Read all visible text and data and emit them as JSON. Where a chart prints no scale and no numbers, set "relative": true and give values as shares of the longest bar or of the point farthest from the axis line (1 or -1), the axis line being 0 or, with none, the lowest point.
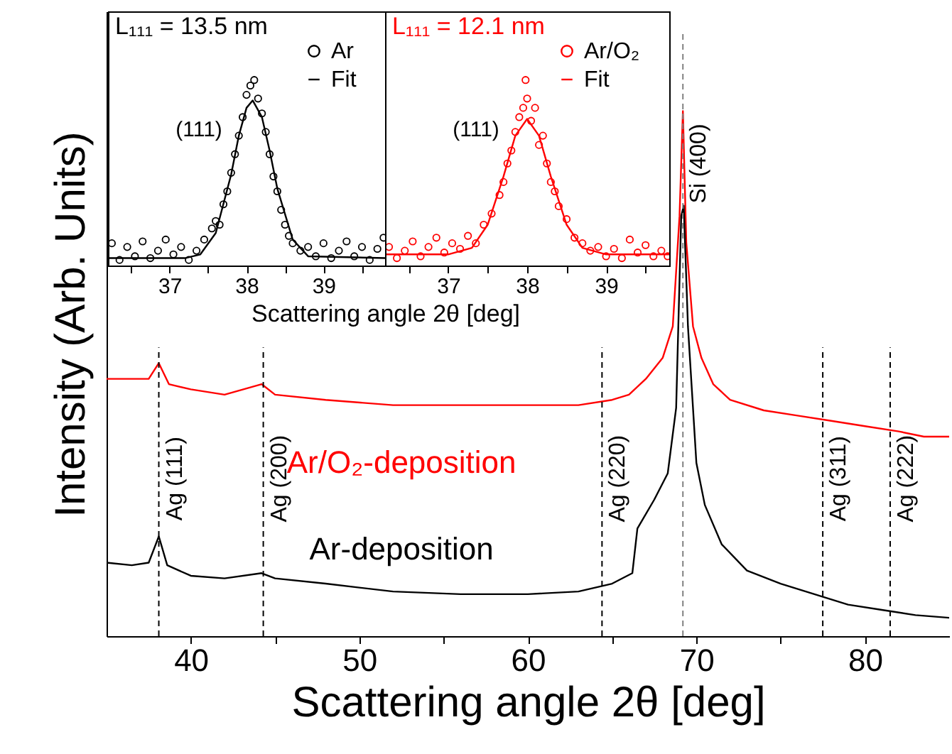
{
  "chart_data": [
    {
      "type": "line",
      "relative": true,
      "xlabel": "Scattering angle 2θ [deg]",
      "ylabel": "Intensity (Arb. Units)",
      "xlim": [
        35,
        85
      ],
      "xticks": [
        40,
        {
          "value": 45,
          "label": null
        },
        50,
        {
          "value": 55,
          "label": null
        },
        60,
        {
          "value": 65,
          "label": null
        },
        70,
        {
          "value": 75,
          "label": null
        },
        80
      ],
      "series": [
        {
          "name": "Ar/O₂-deposition",
          "color": "#ff0000",
          "x": [
            35,
            36.5,
            37.5,
            38.1,
            38.7,
            40,
            42,
            44.2,
            45,
            48,
            52,
            56,
            60,
            63,
            65,
            66,
            67,
            68,
            68.6,
            69,
            69.2,
            69.4,
            69.8,
            70.3,
            71,
            72,
            74,
            76,
            78,
            80,
            82,
            83.5,
            85
          ],
          "values": [
            0.49,
            0.49,
            0.49,
            0.52,
            0.48,
            0.47,
            0.46,
            0.48,
            0.46,
            0.45,
            0.44,
            0.44,
            0.44,
            0.44,
            0.45,
            0.46,
            0.49,
            0.53,
            0.59,
            0.8,
            1.0,
            0.75,
            0.59,
            0.53,
            0.48,
            0.45,
            0.43,
            0.42,
            0.41,
            0.4,
            0.39,
            0.38,
            0.38
          ]
        },
        {
          "name": "Ar-deposition",
          "color": "#000000",
          "x": [
            35,
            36.5,
            37.5,
            38.1,
            38.6,
            40,
            42,
            44.2,
            45,
            48,
            52,
            56,
            60,
            63,
            65,
            66.2,
            66.5,
            67.5,
            68.3,
            68.8,
            69.1,
            69.25,
            69.5,
            70,
            70.5,
            71.5,
            73,
            75,
            77,
            79,
            81,
            83,
            85
          ],
          "values": [
            0.14,
            0.135,
            0.14,
            0.19,
            0.135,
            0.115,
            0.11,
            0.12,
            0.11,
            0.1,
            0.085,
            0.08,
            0.08,
            0.085,
            0.1,
            0.12,
            0.205,
            0.26,
            0.31,
            0.435,
            0.8,
            0.82,
            0.59,
            0.33,
            0.25,
            0.175,
            0.125,
            0.1,
            0.08,
            0.06,
            0.05,
            0.04,
            0.035
          ]
        }
      ],
      "ref_lines": [
        {
          "axis": "x",
          "value": 38.1,
          "label": "Ag (111)",
          "line_style": "dashed",
          "color": "#000000"
        },
        {
          "axis": "x",
          "value": 44.3,
          "label": "Ag (200)",
          "line_style": "dashed",
          "color": "#000000"
        },
        {
          "axis": "x",
          "value": 64.4,
          "label": "Ag (220)",
          "line_style": "dashed",
          "color": "#000000"
        },
        {
          "axis": "x",
          "value": 69.2,
          "label": "Si (400)",
          "line_style": "dashed",
          "color": "#808080"
        },
        {
          "axis": "x",
          "value": 77.5,
          "label": "Ag (311)",
          "line_style": "dashed",
          "color": "#000000"
        },
        {
          "axis": "x",
          "value": 81.5,
          "label": "Ag (222)",
          "line_style": "dashed",
          "color": "#000000"
        }
      ]
    },
    {
      "type": "scatter",
      "relative": true,
      "xlabel": "Scattering angle 2θ [deg]",
      "xlim": [
        36.2,
        39.8
      ],
      "xticks": [
        {
          "value": 36.5,
          "label": null
        },
        37,
        {
          "value": 37.5,
          "label": null
        },
        38,
        {
          "value": 38.5,
          "label": null
        },
        39,
        {
          "value": 39.5,
          "label": null
        }
      ],
      "legend": "top right",
      "annotations": [
        "L₁₁₁ = 13.5 nm",
        "(111)"
      ],
      "series": [
        {
          "name": "Ar",
          "color": "#000000",
          "marker": "circle",
          "x": [
            36.25,
            36.35,
            36.45,
            36.55,
            36.65,
            36.75,
            36.85,
            36.95,
            37.05,
            37.15,
            37.25,
            37.35,
            37.45,
            37.55,
            37.6,
            37.65,
            37.7,
            37.75,
            37.8,
            37.85,
            37.9,
            37.95,
            38.0,
            38.05,
            38.1,
            38.15,
            38.2,
            38.25,
            38.3,
            38.35,
            38.4,
            38.45,
            38.5,
            38.55,
            38.6,
            38.7,
            38.8,
            38.9,
            39.0,
            39.1,
            39.2,
            39.3,
            39.4,
            39.5,
            39.6,
            39.7,
            39.78
          ],
          "values": [
            0.12,
            0.03,
            0.1,
            0.05,
            0.13,
            0.04,
            0.08,
            0.14,
            0.06,
            0.1,
            0.03,
            0.08,
            0.14,
            0.2,
            0.24,
            0.22,
            0.33,
            0.4,
            0.5,
            0.6,
            0.7,
            0.8,
            0.92,
            0.97,
            1.0,
            0.9,
            0.82,
            0.72,
            0.6,
            0.48,
            0.4,
            0.3,
            0.22,
            0.16,
            0.12,
            0.08,
            0.1,
            0.05,
            0.12,
            0.04,
            0.08,
            0.13,
            0.05,
            0.1,
            0.03,
            0.09,
            0.15
          ]
        },
        {
          "name": "Fit",
          "type": "line",
          "color": "#000000",
          "x": [
            36.2,
            37.2,
            37.4,
            37.6,
            37.8,
            37.9,
            38.0,
            38.08,
            38.2,
            38.3,
            38.4,
            38.6,
            38.8,
            39.8
          ],
          "values": [
            0.04,
            0.04,
            0.06,
            0.175,
            0.49,
            0.7,
            0.85,
            0.89,
            0.8,
            0.62,
            0.415,
            0.14,
            0.05,
            0.04
          ]
        }
      ]
    },
    {
      "type": "scatter",
      "relative": true,
      "xlim": [
        36.2,
        39.8
      ],
      "xticks": [
        {
          "value": 36.5,
          "label": null
        },
        37,
        {
          "value": 37.5,
          "label": null
        },
        38,
        {
          "value": 38.5,
          "label": null
        },
        39,
        {
          "value": 39.5,
          "label": null
        }
      ],
      "legend": "top right",
      "annotations": [
        "L₁₁₁ = 12.1 nm",
        "(111)"
      ],
      "series": [
        {
          "name": "Ar/O₂",
          "color": "#ff0000",
          "marker": "circle",
          "x": [
            36.25,
            36.35,
            36.45,
            36.55,
            36.65,
            36.75,
            36.85,
            36.95,
            37.05,
            37.15,
            37.25,
            37.35,
            37.45,
            37.55,
            37.65,
            37.7,
            37.75,
            37.8,
            37.85,
            37.9,
            37.95,
            37.98,
            38.0,
            38.05,
            38.1,
            38.15,
            38.2,
            38.25,
            38.3,
            38.35,
            38.4,
            38.5,
            38.6,
            38.7,
            38.8,
            38.9,
            39.0,
            39.1,
            39.2,
            39.3,
            39.4,
            39.5,
            39.6,
            39.7,
            39.78
          ],
          "values": [
            0.1,
            0.04,
            0.08,
            0.13,
            0.05,
            0.1,
            0.15,
            0.07,
            0.12,
            0.09,
            0.16,
            0.12,
            0.22,
            0.28,
            0.38,
            0.45,
            0.55,
            0.62,
            0.72,
            0.8,
            0.85,
            1.0,
            0.9,
            0.78,
            0.85,
            0.65,
            0.7,
            0.55,
            0.45,
            0.4,
            0.32,
            0.25,
            0.15,
            0.12,
            0.08,
            0.1,
            0.05,
            0.09,
            0.04,
            0.14,
            0.07,
            0.11,
            0.05,
            0.08,
            0.05
          ]
        },
        {
          "name": "Fit",
          "type": "line",
          "color": "#ff0000",
          "x": [
            36.2,
            37.0,
            37.3,
            37.5,
            37.7,
            37.85,
            38.0,
            38.15,
            38.3,
            38.5,
            38.7,
            39.0,
            39.8
          ],
          "values": [
            0.06,
            0.06,
            0.095,
            0.22,
            0.48,
            0.7,
            0.79,
            0.7,
            0.48,
            0.22,
            0.095,
            0.06,
            0.06
          ]
        }
      ]
    }
  ]
}
